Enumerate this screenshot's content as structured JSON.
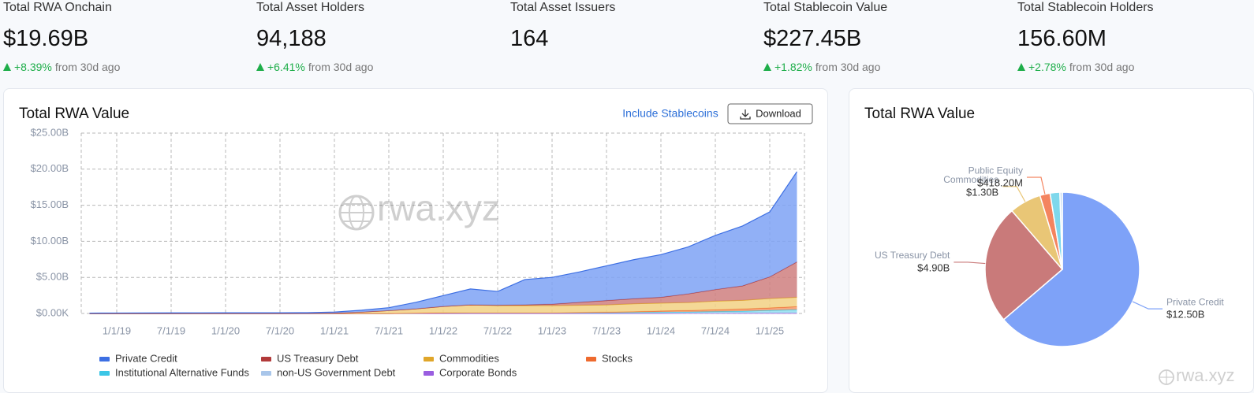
{
  "stats": [
    {
      "label": "Total RWA Onchain",
      "value": "$19.69B",
      "change": "+8.39%",
      "period": "from 30d ago"
    },
    {
      "label": "Total Asset Holders",
      "value": "94,188",
      "change": "+6.41%",
      "period": "from 30d ago"
    },
    {
      "label": "Total Asset Issuers",
      "value": "164"
    },
    {
      "label": "Total Stablecoin Value",
      "value": "$227.45B",
      "change": "+1.82%",
      "period": "from 30d ago"
    },
    {
      "label": "Total Stablecoin Holders",
      "value": "156.60M",
      "change": "+2.78%",
      "period": "from 30d ago"
    }
  ],
  "watermark": "rwa.xyz",
  "controls": {
    "toggle": "Include Stablecoins",
    "download": "Download"
  },
  "chart_data": [
    {
      "type": "area",
      "title": "Total RWA Value",
      "stacked": true,
      "grid": true,
      "x": [
        "10/1/18",
        "1/1/19",
        "4/1/19",
        "7/1/19",
        "10/1/19",
        "1/1/20",
        "4/1/20",
        "7/1/20",
        "10/1/20",
        "1/1/21",
        "4/1/21",
        "7/1/21",
        "10/1/21",
        "1/1/22",
        "4/1/22",
        "7/1/22",
        "10/1/22",
        "1/1/23",
        "4/1/23",
        "7/1/23",
        "10/1/23",
        "1/1/24",
        "4/1/24",
        "7/1/24",
        "10/1/24",
        "1/1/25",
        "4/1/25"
      ],
      "xticks": [
        "1/1/19",
        "7/1/19",
        "1/1/20",
        "7/1/20",
        "1/1/21",
        "7/1/21",
        "1/1/22",
        "7/1/22",
        "1/1/23",
        "7/1/23",
        "1/1/24",
        "7/1/24",
        "1/1/25"
      ],
      "ylim": [
        0,
        25
      ],
      "yticks": [
        {
          "value": 0,
          "label": "$0.00K"
        },
        {
          "value": 5,
          "label": "$5.00B"
        },
        {
          "value": 10,
          "label": "$10.00B"
        },
        {
          "value": 15,
          "label": "$15.00B"
        },
        {
          "value": 20,
          "label": "$20.00B"
        },
        {
          "value": 25,
          "label": "$25.00B"
        }
      ],
      "series": [
        {
          "name": "Private Credit",
          "color": "#3d6fe3",
          "fill": "#7ea2f4",
          "values": [
            0.05,
            0.06,
            0.07,
            0.08,
            0.09,
            0.1,
            0.1,
            0.1,
            0.1,
            0.15,
            0.25,
            0.4,
            0.9,
            1.5,
            2.2,
            1.9,
            3.5,
            3.7,
            4.2,
            4.8,
            5.4,
            5.9,
            6.5,
            7.5,
            8.3,
            9.0,
            12.5
          ]
        },
        {
          "name": "US Treasury Debt",
          "color": "#b23a3a",
          "fill": "#cf7f7f",
          "values": [
            0,
            0,
            0,
            0,
            0,
            0,
            0,
            0,
            0,
            0,
            0,
            0,
            0,
            0,
            0,
            0.05,
            0.1,
            0.2,
            0.4,
            0.6,
            0.7,
            0.8,
            1.2,
            1.6,
            2.0,
            3.0,
            4.9
          ]
        },
        {
          "name": "Commodities",
          "color": "#e0a62a",
          "fill": "#f2d184",
          "values": [
            0,
            0,
            0,
            0,
            0,
            0,
            0,
            0,
            0.01,
            0.05,
            0.2,
            0.4,
            0.6,
            0.9,
            1.1,
            1.0,
            1.0,
            1.0,
            1.0,
            1.0,
            1.1,
            1.1,
            1.1,
            1.2,
            1.2,
            1.3,
            1.3
          ]
        },
        {
          "name": "Stocks",
          "color": "#ee6a2e",
          "fill": "#f59a6a",
          "values": [
            0,
            0,
            0,
            0,
            0,
            0,
            0,
            0,
            0,
            0,
            0,
            0,
            0,
            0,
            0,
            0,
            0,
            0,
            0.05,
            0.1,
            0.1,
            0.15,
            0.2,
            0.25,
            0.3,
            0.35,
            0.42
          ]
        },
        {
          "name": "Institutional Alternative Funds",
          "color": "#3cc6e6",
          "fill": "#8fdff0",
          "values": [
            0,
            0,
            0,
            0,
            0,
            0,
            0,
            0,
            0,
            0,
            0,
            0,
            0,
            0,
            0,
            0,
            0,
            0,
            0,
            0,
            0.05,
            0.1,
            0.1,
            0.15,
            0.2,
            0.3,
            0.4
          ]
        },
        {
          "name": "non-US Government Debt",
          "color": "#a9c6ea",
          "fill": "#d3e3f5",
          "values": [
            0,
            0,
            0,
            0,
            0,
            0,
            0,
            0,
            0,
            0,
            0,
            0,
            0.05,
            0.08,
            0.1,
            0.1,
            0.1,
            0.1,
            0.1,
            0.1,
            0.1,
            0.1,
            0.1,
            0.1,
            0.1,
            0.1,
            0.1
          ]
        },
        {
          "name": "Corporate Bonds",
          "color": "#9a5ee0",
          "fill": "#c3a0ef",
          "values": [
            0,
            0,
            0,
            0,
            0,
            0,
            0,
            0,
            0,
            0,
            0,
            0,
            0,
            0,
            0,
            0,
            0,
            0,
            0,
            0,
            0,
            0,
            0.02,
            0.02,
            0.03,
            0.03,
            0.03
          ]
        }
      ]
    },
    {
      "type": "pie",
      "title": "Total RWA Value",
      "categories": [
        "Private Credit",
        "US Treasury Debt",
        "Commodities",
        "Public Equity",
        null,
        null
      ],
      "values": [
        12.5,
        4.9,
        1.3,
        0.4182,
        0.4,
        0.1
      ],
      "value_labels": [
        "$12.50B",
        "$4.90B",
        "$1.30B",
        "$418.20M",
        null,
        null
      ],
      "colors": [
        "#7ea2f8",
        "#c97a7a",
        "#e9c676",
        "#f4845f",
        "#7fd8ec",
        "#c9dcf4"
      ]
    }
  ]
}
